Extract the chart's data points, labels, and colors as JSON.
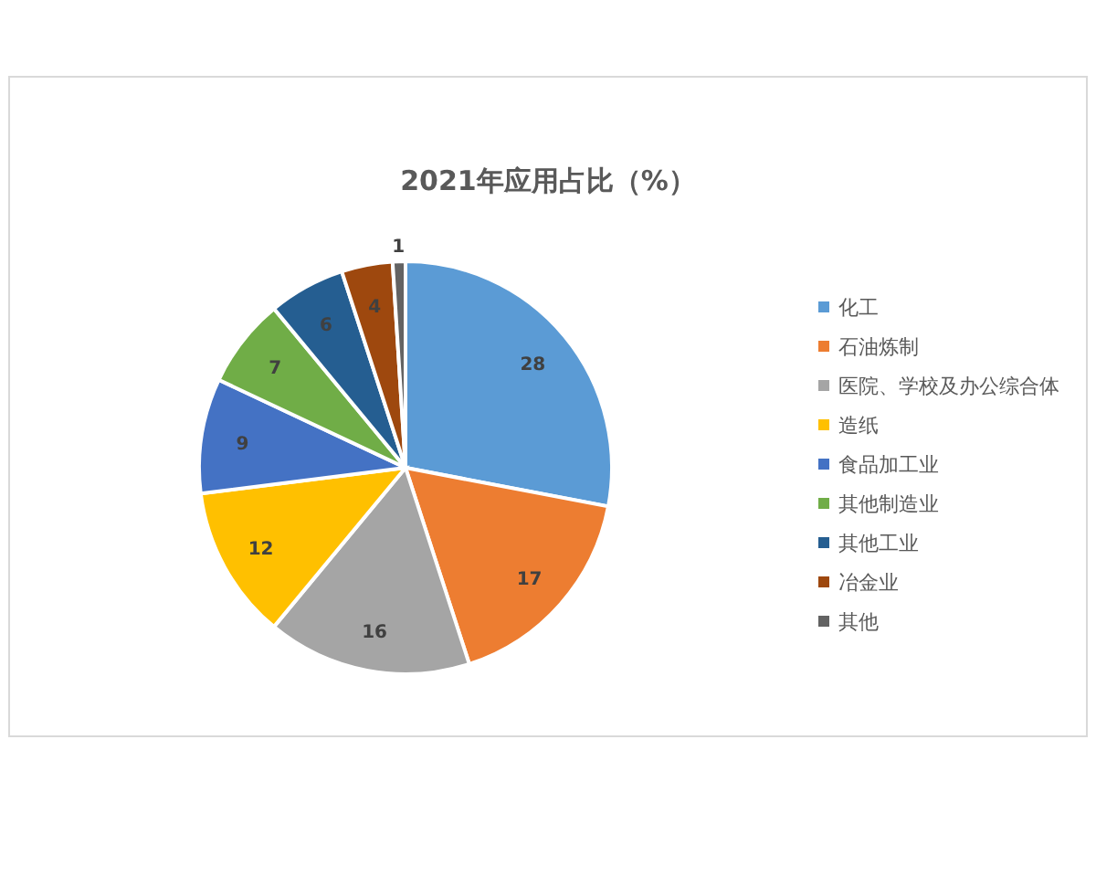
{
  "chart_data": {
    "type": "pie",
    "title": "2021年应用占比（%）",
    "categories": [
      "化工",
      "石油炼制",
      "医院、学校及办公综合体",
      "造纸",
      "食品加工业",
      "其他制造业",
      "其他工业",
      "冶金业",
      "其他"
    ],
    "values": [
      28,
      17,
      16,
      12,
      9,
      7,
      6,
      4,
      1
    ],
    "colors": [
      "#5b9bd5",
      "#ed7d31",
      "#a5a5a5",
      "#ffc000",
      "#4472c4",
      "#70ad47",
      "#255e91",
      "#9e480e",
      "#636363"
    ],
    "data_labels": true,
    "legend": "right"
  }
}
